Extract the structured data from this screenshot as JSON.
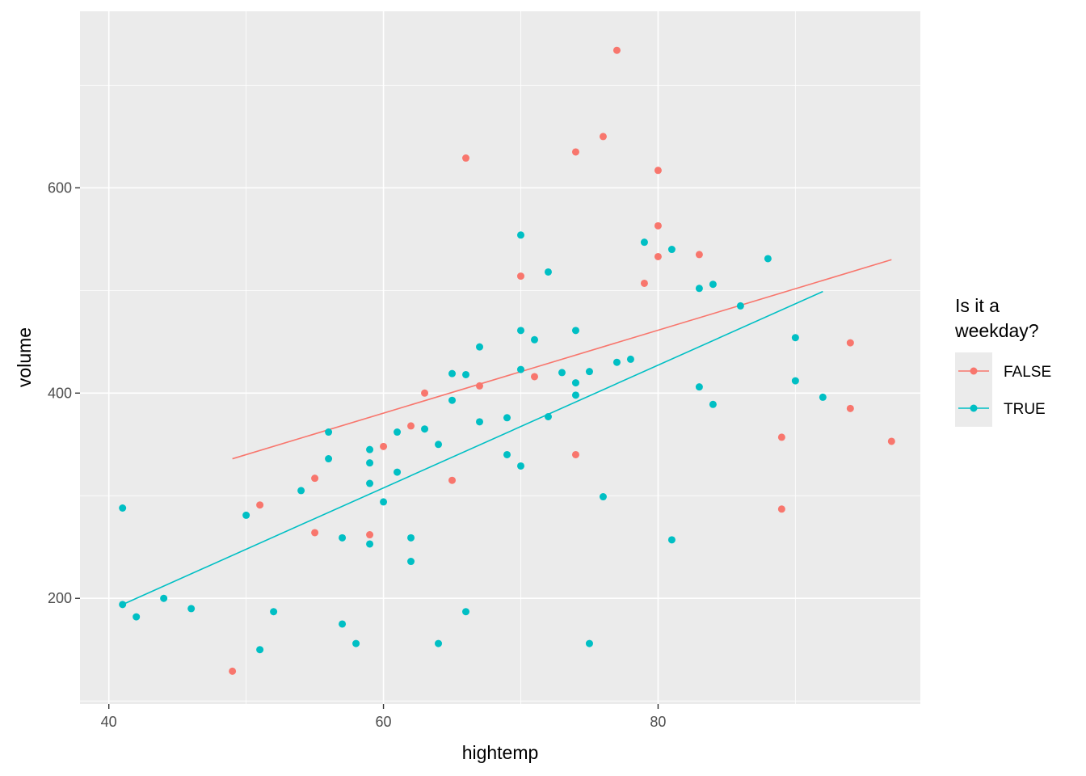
{
  "chart_data": {
    "type": "scatter",
    "xlabel": "hightemp",
    "ylabel": "volume",
    "xlim": [
      37.9,
      99.1
    ],
    "ylim": [
      97,
      772
    ],
    "x_ticks": [
      40,
      60,
      80
    ],
    "x_tick_labels": [
      "40",
      "60",
      "80"
    ],
    "y_ticks": [
      200,
      400,
      600
    ],
    "y_tick_labels": [
      "200",
      "400",
      "600"
    ],
    "grid": true,
    "legend": {
      "title_lines": [
        "Is it a",
        "weekday?"
      ],
      "placement": "right"
    },
    "series": [
      {
        "name": "FALSE",
        "color": "#F8766D",
        "points": [
          [
            49,
            129
          ],
          [
            51,
            291
          ],
          [
            55,
            264
          ],
          [
            55,
            317
          ],
          [
            59,
            262
          ],
          [
            60,
            348
          ],
          [
            62,
            368
          ],
          [
            63,
            400
          ],
          [
            65,
            315
          ],
          [
            66,
            629
          ],
          [
            67,
            407
          ],
          [
            70,
            514
          ],
          [
            71,
            416
          ],
          [
            74,
            635
          ],
          [
            74,
            340
          ],
          [
            76,
            650
          ],
          [
            77,
            734
          ],
          [
            79,
            507
          ],
          [
            80,
            617
          ],
          [
            80,
            563
          ],
          [
            80,
            533
          ],
          [
            83,
            535
          ],
          [
            89,
            357
          ],
          [
            89,
            287
          ],
          [
            94,
            449
          ],
          [
            94,
            385
          ],
          [
            97,
            353
          ]
        ],
        "trend": {
          "x": [
            49,
            97
          ],
          "y": [
            336,
            530
          ]
        }
      },
      {
        "name": "TRUE",
        "color": "#00BFC4",
        "points": [
          [
            41,
            288
          ],
          [
            41,
            194
          ],
          [
            42,
            182
          ],
          [
            44,
            200
          ],
          [
            46,
            190
          ],
          [
            50,
            281
          ],
          [
            51,
            150
          ],
          [
            52,
            187
          ],
          [
            54,
            305
          ],
          [
            56,
            362
          ],
          [
            56,
            336
          ],
          [
            57,
            259
          ],
          [
            57,
            175
          ],
          [
            58,
            156
          ],
          [
            59,
            345
          ],
          [
            59,
            332
          ],
          [
            59,
            312
          ],
          [
            59,
            253
          ],
          [
            60,
            294
          ],
          [
            61,
            362
          ],
          [
            61,
            323
          ],
          [
            62,
            259
          ],
          [
            62,
            236
          ],
          [
            63,
            365
          ],
          [
            64,
            350
          ],
          [
            64,
            156
          ],
          [
            65,
            419
          ],
          [
            65,
            393
          ],
          [
            66,
            418
          ],
          [
            66,
            187
          ],
          [
            67,
            445
          ],
          [
            67,
            372
          ],
          [
            69,
            376
          ],
          [
            69,
            340
          ],
          [
            70,
            554
          ],
          [
            70,
            461
          ],
          [
            70,
            423
          ],
          [
            70,
            329
          ],
          [
            71,
            452
          ],
          [
            72,
            518
          ],
          [
            72,
            377
          ],
          [
            73,
            420
          ],
          [
            74,
            461
          ],
          [
            74,
            410
          ],
          [
            74,
            398
          ],
          [
            75,
            421
          ],
          [
            75,
            156
          ],
          [
            76,
            299
          ],
          [
            77,
            430
          ],
          [
            78,
            433
          ],
          [
            79,
            547
          ],
          [
            81,
            540
          ],
          [
            81,
            257
          ],
          [
            83,
            502
          ],
          [
            83,
            406
          ],
          [
            84,
            506
          ],
          [
            84,
            389
          ],
          [
            86,
            485
          ],
          [
            88,
            531
          ],
          [
            90,
            454
          ],
          [
            90,
            412
          ],
          [
            92,
            396
          ]
        ],
        "trend": {
          "x": [
            41,
            92
          ],
          "y": [
            194,
            499
          ]
        }
      }
    ]
  }
}
